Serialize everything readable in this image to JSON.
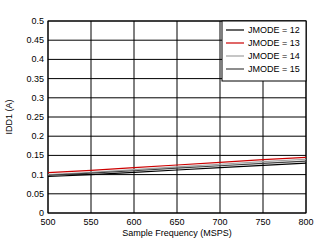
{
  "chart_data": {
    "type": "line",
    "x_label": "Sample Frequency (MSPS)",
    "y_label": "IDD1 (A)",
    "x": [
      500,
      550,
      600,
      650,
      700,
      750,
      800
    ],
    "series": [
      {
        "name": "JMODE = 12",
        "color": "#000000",
        "values": [
          0.095,
          0.1,
          0.106,
          0.112,
          0.118,
          0.124,
          0.13
        ]
      },
      {
        "name": "JMODE = 13",
        "color": "#cc0000",
        "values": [
          0.105,
          0.111,
          0.118,
          0.125,
          0.132,
          0.139,
          0.145
        ]
      },
      {
        "name": "JMODE = 14",
        "color": "#a0a0a0",
        "values": [
          0.1,
          0.106,
          0.113,
          0.12,
          0.127,
          0.134,
          0.14
        ]
      },
      {
        "name": "JMODE = 15",
        "color": "#404040",
        "values": [
          0.098,
          0.104,
          0.11,
          0.117,
          0.123,
          0.129,
          0.135
        ]
      }
    ],
    "xlim": [
      500,
      800
    ],
    "xticks": [
      500,
      550,
      600,
      650,
      700,
      750,
      800
    ],
    "ylim": [
      0,
      0.5
    ],
    "yticks": [
      0,
      0.05,
      0.1,
      0.15,
      0.2,
      0.25,
      0.3,
      0.35,
      0.4,
      0.45,
      0.5
    ],
    "grid": true,
    "legend": "top-right"
  }
}
